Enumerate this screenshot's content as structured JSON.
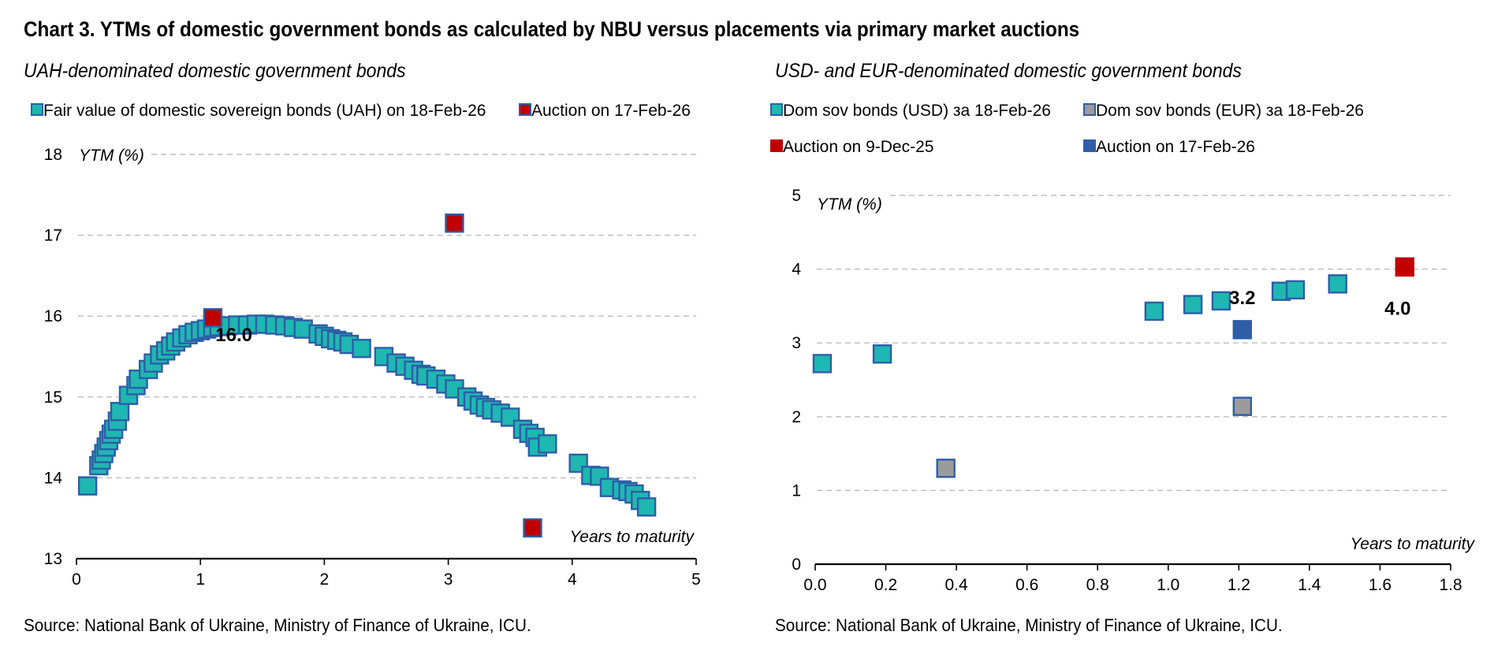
{
  "header": {
    "title": "Chart 3. YTMs of domestic government bonds as calculated by NBU versus placements via primary market auctions"
  },
  "colors": {
    "teal": "#1fb7b1",
    "teal_edge": "#2d5ea8",
    "red": "#c00000",
    "grey": "#9b9b9b",
    "blue": "#2f5ea8",
    "grid": "#bdbdbd"
  },
  "chart_data": [
    {
      "type": "scatter",
      "subtitle": "UAH-denominated domestic government bonds",
      "xlabel": "Years to maturity",
      "ylabel": "YTM (%)",
      "xlim": [
        0,
        5
      ],
      "ylim": [
        13,
        18
      ],
      "xticks": [
        0,
        1,
        2,
        3,
        4,
        5
      ],
      "yticks": [
        13,
        14,
        15,
        16,
        17,
        18
      ],
      "xtick_decimals": 0,
      "grid": true,
      "legend_position": "top",
      "series": [
        {
          "name": "Fair value of domestic sovereign bonds (UAH) on 18-Feb-26",
          "color": "#1fb7b1",
          "edge": "#2d5ea8",
          "points": [
            [
              0.09,
              13.9
            ],
            [
              0.18,
              14.15
            ],
            [
              0.2,
              14.22
            ],
            [
              0.22,
              14.3
            ],
            [
              0.24,
              14.38
            ],
            [
              0.26,
              14.46
            ],
            [
              0.28,
              14.54
            ],
            [
              0.3,
              14.6
            ],
            [
              0.33,
              14.7
            ],
            [
              0.35,
              14.82
            ],
            [
              0.42,
              15.02
            ],
            [
              0.48,
              15.14
            ],
            [
              0.5,
              15.22
            ],
            [
              0.58,
              15.34
            ],
            [
              0.62,
              15.42
            ],
            [
              0.67,
              15.52
            ],
            [
              0.72,
              15.57
            ],
            [
              0.76,
              15.63
            ],
            [
              0.8,
              15.68
            ],
            [
              0.85,
              15.73
            ],
            [
              0.9,
              15.77
            ],
            [
              0.95,
              15.8
            ],
            [
              1.0,
              15.82
            ],
            [
              1.05,
              15.84
            ],
            [
              1.1,
              15.86
            ],
            [
              1.15,
              15.87
            ],
            [
              1.22,
              15.88
            ],
            [
              1.3,
              15.89
            ],
            [
              1.38,
              15.89
            ],
            [
              1.45,
              15.9
            ],
            [
              1.52,
              15.9
            ],
            [
              1.6,
              15.89
            ],
            [
              1.68,
              15.88
            ],
            [
              1.75,
              15.86
            ],
            [
              1.83,
              15.84
            ],
            [
              1.95,
              15.78
            ],
            [
              2.0,
              15.75
            ],
            [
              2.05,
              15.72
            ],
            [
              2.1,
              15.7
            ],
            [
              2.15,
              15.68
            ],
            [
              2.2,
              15.65
            ],
            [
              2.3,
              15.6
            ],
            [
              2.48,
              15.5
            ],
            [
              2.58,
              15.42
            ],
            [
              2.65,
              15.38
            ],
            [
              2.72,
              15.33
            ],
            [
              2.78,
              15.28
            ],
            [
              2.82,
              15.26
            ],
            [
              2.9,
              15.22
            ],
            [
              2.98,
              15.16
            ],
            [
              3.05,
              15.1
            ],
            [
              3.15,
              15.0
            ],
            [
              3.2,
              14.95
            ],
            [
              3.25,
              14.9
            ],
            [
              3.3,
              14.87
            ],
            [
              3.35,
              14.84
            ],
            [
              3.42,
              14.8
            ],
            [
              3.5,
              14.75
            ],
            [
              3.6,
              14.6
            ],
            [
              3.65,
              14.55
            ],
            [
              3.7,
              14.5
            ],
            [
              3.72,
              14.38
            ],
            [
              3.8,
              14.42
            ],
            [
              4.05,
              14.18
            ],
            [
              4.15,
              14.03
            ],
            [
              4.22,
              14.02
            ],
            [
              4.3,
              13.88
            ],
            [
              4.4,
              13.85
            ],
            [
              4.45,
              13.83
            ],
            [
              4.5,
              13.8
            ],
            [
              4.55,
              13.72
            ],
            [
              4.6,
              13.64
            ]
          ]
        },
        {
          "name": "Auction on 17-Feb-26",
          "color": "#c00000",
          "edge": "#2d5ea8",
          "points": [
            [
              1.1,
              15.98
            ],
            [
              3.05,
              17.15
            ],
            [
              3.68,
              13.38
            ]
          ]
        }
      ],
      "annotations": [
        {
          "text": "16.0",
          "x": 1.27,
          "y": 15.78
        }
      ]
    },
    {
      "type": "scatter",
      "subtitle": "USD- and EUR-denominated domestic government bonds",
      "xlabel": "Years to maturity",
      "ylabel": "YTM (%)",
      "xlim": [
        0,
        1.8
      ],
      "ylim": [
        0,
        5
      ],
      "xticks": [
        0,
        0.2,
        0.4,
        0.6,
        0.8,
        1.0,
        1.2,
        1.4,
        1.6,
        1.8
      ],
      "yticks": [
        0,
        1,
        2,
        3,
        4,
        5
      ],
      "xtick_decimals": 1,
      "grid": true,
      "legend_position": "top",
      "series": [
        {
          "name": "Dom sov bonds (USD) за 18-Feb-26",
          "color": "#1fb7b1",
          "edge": "#2d5ea8",
          "points": [
            [
              0.02,
              2.72
            ],
            [
              0.19,
              2.85
            ],
            [
              0.96,
              3.43
            ],
            [
              1.07,
              3.52
            ],
            [
              1.15,
              3.57
            ],
            [
              1.32,
              3.7
            ],
            [
              1.36,
              3.72
            ],
            [
              1.48,
              3.8
            ]
          ]
        },
        {
          "name": "Dom sov bonds (EUR) за 18-Feb-26",
          "color": "#9b9b9b",
          "edge": "#2d5ea8",
          "points": [
            [
              0.37,
              1.3
            ],
            [
              1.21,
              2.14
            ]
          ]
        },
        {
          "name": "Auction on 9-Dec-25",
          "color": "#c00000",
          "edge": "#c00000",
          "points": [
            [
              1.67,
              4.03
            ]
          ]
        },
        {
          "name": "Auction on 17-Feb-26",
          "color": "#2f5ea8",
          "edge": "#2f5ea8",
          "points": [
            [
              1.21,
              3.18
            ]
          ]
        }
      ],
      "annotations": [
        {
          "text": "3.2",
          "x": 1.21,
          "y": 3.62
        },
        {
          "text": "4.0",
          "x": 1.65,
          "y": 3.48
        }
      ]
    }
  ],
  "sources": [
    "Source: National Bank of Ukraine, Ministry of Finance of Ukraine, ICU.",
    "Source: National Bank of Ukraine, Ministry of Finance of Ukraine, ICU."
  ]
}
